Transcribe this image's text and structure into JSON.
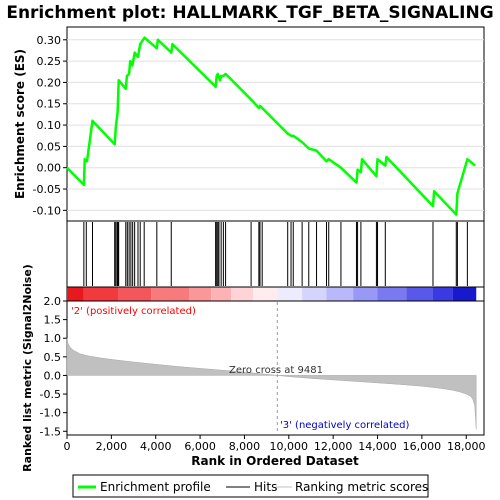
{
  "chart_data": {
    "type": "line",
    "title": "Enrichment plot: HALLMARK_TGF_BETA_SIGNALING",
    "top_panel": {
      "ylabel": "Enrichment score (ES)",
      "ylim": [
        -0.125,
        0.33
      ],
      "yticks": [
        -0.1,
        -0.05,
        0.0,
        0.05,
        0.1,
        0.15,
        0.2,
        0.25,
        0.3
      ],
      "ytick_labels": [
        "-0.10",
        "-0.05",
        "0.00",
        "0.05",
        "0.10",
        "0.15",
        "0.20",
        "0.25",
        "0.30"
      ],
      "series": [
        {
          "name": "Enrichment profile",
          "color": "#00ff00",
          "x": [
            0,
            760,
            800,
            900,
            1150,
            2150,
            2200,
            2280,
            2330,
            2650,
            2700,
            2800,
            2850,
            2950,
            3050,
            3200,
            3300,
            3500,
            4050,
            4100,
            4700,
            4750,
            6700,
            6750,
            6800,
            6900,
            6950,
            7050,
            7150,
            8300,
            8650,
            8700,
            8800,
            9950,
            10100,
            10200,
            10600,
            10900,
            11250,
            11700,
            11800,
            12350,
            13050,
            13100,
            13250,
            13300,
            13950,
            14000,
            14350,
            14400,
            16500,
            16550,
            17550,
            17600,
            18050,
            18400
          ],
          "y": [
            0.0,
            -0.04,
            0.02,
            0.015,
            0.11,
            0.055,
            0.095,
            0.13,
            0.205,
            0.185,
            0.215,
            0.22,
            0.25,
            0.24,
            0.27,
            0.26,
            0.29,
            0.305,
            0.28,
            0.3,
            0.27,
            0.29,
            0.19,
            0.215,
            0.22,
            0.205,
            0.215,
            0.215,
            0.22,
            0.16,
            0.14,
            0.145,
            0.14,
            0.08,
            0.075,
            0.075,
            0.06,
            0.045,
            0.04,
            0.015,
            0.02,
            0.0,
            -0.035,
            -0.005,
            -0.01,
            0.02,
            -0.02,
            0.02,
            0.005,
            0.025,
            -0.09,
            -0.055,
            -0.11,
            -0.06,
            0.02,
            0.005
          ]
        }
      ]
    },
    "hits": {
      "name": "Hits",
      "positions": [
        760,
        870,
        1150,
        2150,
        2200,
        2260,
        2300,
        2330,
        2650,
        2720,
        2800,
        2880,
        2960,
        3050,
        3200,
        3300,
        3480,
        4050,
        4700,
        6700,
        6750,
        6800,
        6850,
        6950,
        7050,
        7150,
        8300,
        8650,
        8700,
        8800,
        9950,
        10100,
        10200,
        10600,
        10900,
        11250,
        11700,
        11800,
        12350,
        13050,
        13100,
        13250,
        13950,
        14000,
        14350,
        16500,
        17550,
        17600,
        18050
      ]
    },
    "colorbar": {
      "segments": [
        {
          "from": 0,
          "to": 760,
          "color": "#e8191e"
        },
        {
          "from": 760,
          "to": 2300,
          "color": "#f03a3e"
        },
        {
          "from": 2300,
          "to": 3800,
          "color": "#f4575b"
        },
        {
          "from": 3800,
          "to": 5500,
          "color": "#f77a7d"
        },
        {
          "from": 5500,
          "to": 6500,
          "color": "#fa9799"
        },
        {
          "from": 6500,
          "to": 7400,
          "color": "#fdb3b5"
        },
        {
          "from": 7400,
          "to": 8400,
          "color": "#fed4d6"
        },
        {
          "from": 8400,
          "to": 9481,
          "color": "#ffecef"
        },
        {
          "from": 9481,
          "to": 10600,
          "color": "#ececfe"
        },
        {
          "from": 10600,
          "to": 11700,
          "color": "#d4d4fc"
        },
        {
          "from": 11700,
          "to": 12900,
          "color": "#b8b8fa"
        },
        {
          "from": 12900,
          "to": 14000,
          "color": "#9898f6"
        },
        {
          "from": 14000,
          "to": 15300,
          "color": "#7a7af0"
        },
        {
          "from": 15300,
          "to": 16500,
          "color": "#5858ea"
        },
        {
          "from": 16500,
          "to": 17400,
          "color": "#3a3ae2"
        },
        {
          "from": 17400,
          "to": 18450,
          "color": "#1818cc"
        }
      ]
    },
    "bottom_panel": {
      "ylabel": "Ranked list metric (Signal2Noise)",
      "ylim": [
        -1.6,
        2.0
      ],
      "yticks": [
        -1.5,
        -1.0,
        -0.5,
        0.0,
        0.5,
        1.0,
        1.5,
        2.0
      ],
      "ytick_labels": [
        "-1.5",
        "-1.0",
        "-0.5",
        "0.0",
        "0.5",
        "1.0",
        "1.5",
        "2.0"
      ],
      "metric_curve": {
        "name": "Ranking metric scores",
        "color": "#c0c0c0",
        "x": [
          0,
          50,
          150,
          300,
          600,
          1000,
          1500,
          2000,
          3000,
          4000,
          5000,
          6000,
          7000,
          8000,
          9000,
          9481,
          10000,
          11000,
          12000,
          13000,
          14000,
          15000,
          16000,
          16500,
          17000,
          17400,
          17700,
          18000,
          18200,
          18300,
          18380,
          18450
        ],
        "y": [
          1.0,
          0.85,
          0.75,
          0.67,
          0.58,
          0.52,
          0.47,
          0.43,
          0.36,
          0.3,
          0.24,
          0.19,
          0.14,
          0.09,
          0.03,
          0.0,
          -0.03,
          -0.08,
          -0.12,
          -0.16,
          -0.2,
          -0.24,
          -0.29,
          -0.32,
          -0.36,
          -0.4,
          -0.44,
          -0.5,
          -0.56,
          -0.65,
          -0.8,
          -1.45
        ]
      },
      "zero_cross": 9481,
      "zero_cross_label": "Zero cross at 9481",
      "pos_label": "'2' (positively correlated)",
      "neg_label": "'3' (negatively correlated)",
      "pos_color": "#ff0000",
      "neg_color": "#0000cc"
    },
    "xlabel": "Rank in Ordered Dataset",
    "xlim": [
      0,
      18800
    ],
    "xticks": [
      0,
      2000,
      4000,
      6000,
      8000,
      10000,
      12000,
      14000,
      16000,
      18000
    ],
    "xtick_labels": [
      "0",
      "2,000",
      "4,000",
      "6,000",
      "8,000",
      "10,000",
      "12,000",
      "14,000",
      "16,000",
      "18,000"
    ],
    "legend": {
      "placement": "bottom",
      "entries": [
        {
          "label": "Enrichment profile",
          "color": "#00ff00"
        },
        {
          "label": "Hits",
          "color": "#000000"
        },
        {
          "label": "Ranking metric scores",
          "color": "#c0c0c0"
        }
      ]
    }
  }
}
